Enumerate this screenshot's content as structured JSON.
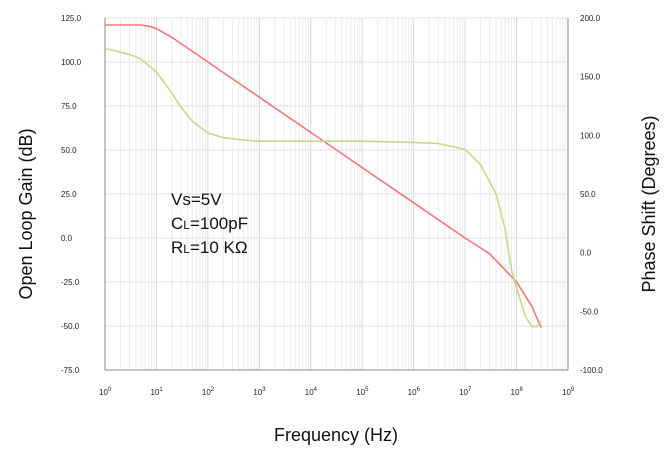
{
  "chart_data": {
    "type": "line",
    "xlabel": "Frequency (Hz)",
    "ylabel_left": "Open Loop Gain (dB)",
    "ylabel_right": "Phase Shift (Degrees)",
    "x_scale": "log",
    "xlim": [
      1,
      1000000000
    ],
    "ylim_left": [
      -75,
      125
    ],
    "ylim_right": [
      -100,
      200
    ],
    "grid": true,
    "left_ticks": [
      "125.0",
      "100.0",
      "75.0",
      "50.0",
      "25.0",
      "0.0",
      "-25.0",
      "-50.0",
      "-75.0"
    ],
    "right_ticks": [
      "200.0",
      "150.0",
      "100.0",
      "50.0",
      "0.0",
      "-50.0",
      "-100.0"
    ],
    "x_ticks": [
      {
        "base": "10",
        "exp": "0"
      },
      {
        "base": "10",
        "exp": "1"
      },
      {
        "base": "10",
        "exp": "2"
      },
      {
        "base": "10",
        "exp": "3"
      },
      {
        "base": "10",
        "exp": "4"
      },
      {
        "base": "10",
        "exp": "5"
      },
      {
        "base": "10",
        "exp": "6"
      },
      {
        "base": "10",
        "exp": "7"
      },
      {
        "base": "10",
        "exp": "8"
      },
      {
        "base": "10",
        "exp": "9"
      }
    ],
    "annotations": [
      {
        "main": "Vs=5V",
        "sub": "",
        "rest": ""
      },
      {
        "main": "C",
        "sub": "L",
        "rest": "=100pF"
      },
      {
        "main": "R",
        "sub": "L",
        "rest": "=10 KΩ"
      }
    ],
    "series": [
      {
        "axis": "left",
        "color": "#f07878",
        "x": [
          1,
          3,
          5,
          8,
          10,
          20,
          50,
          100,
          1000,
          10000,
          100000,
          1000000,
          10000000,
          30000000,
          100000000,
          200000000,
          300000000
        ],
        "y": [
          121,
          121,
          121,
          120,
          119,
          114,
          106,
          100,
          80,
          60,
          40,
          20,
          0,
          -9,
          -25,
          -39,
          -51
        ]
      },
      {
        "axis": "right",
        "color": "#c8d88a",
        "x": [
          1,
          3,
          5,
          10,
          20,
          30,
          50,
          100,
          200,
          500,
          1000,
          10000,
          100000,
          1000000,
          3000000,
          10000000,
          20000000,
          40000000,
          60000000,
          80000000,
          100000000,
          150000000,
          200000000,
          250000000,
          300000000
        ],
        "y": [
          174,
          169,
          165,
          154,
          136,
          124,
          112,
          102,
          98,
          96,
          95,
          95,
          95,
          94,
          93,
          88,
          75,
          50,
          20,
          -15,
          -30,
          -55,
          -63,
          -63,
          -58
        ]
      }
    ]
  }
}
